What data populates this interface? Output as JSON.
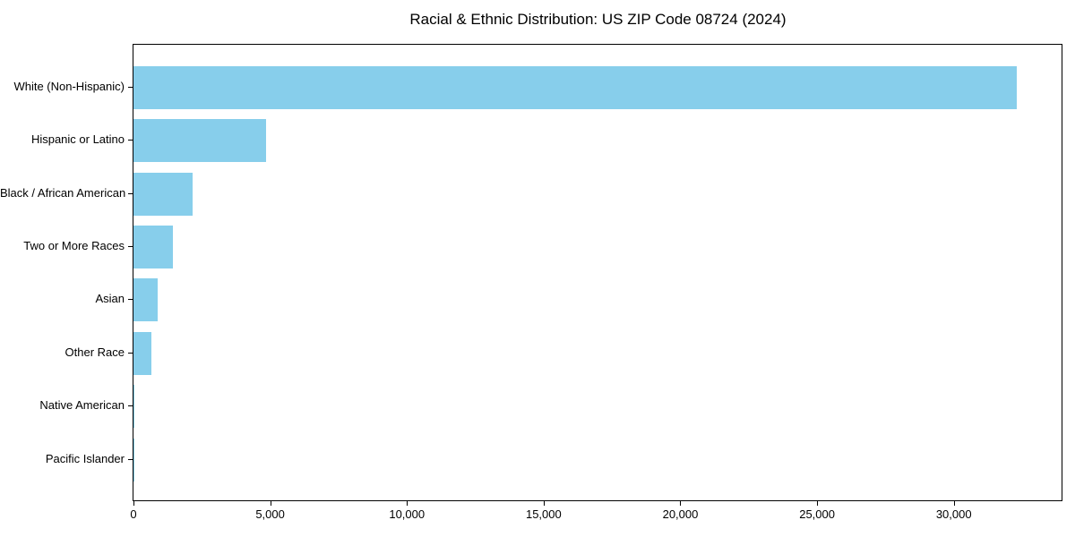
{
  "chart_data": {
    "type": "bar",
    "orientation": "horizontal",
    "title": "Racial & Ethnic Distribution: US ZIP Code 08724 (2024)",
    "categories": [
      "White (Non-Hispanic)",
      "Hispanic or Latino",
      "Black / African American",
      "Two or More Races",
      "Asian",
      "Other Race",
      "Native American",
      "Pacific Islander"
    ],
    "values": [
      32300,
      4850,
      2170,
      1450,
      900,
      670,
      30,
      10
    ],
    "xlabel": "",
    "ylabel": "",
    "xlim": [
      0,
      33940
    ],
    "xticks": [
      {
        "value": 0,
        "label": "0"
      },
      {
        "value": 5000,
        "label": "5,000"
      },
      {
        "value": 10000,
        "label": "10,000"
      },
      {
        "value": 15000,
        "label": "15,000"
      },
      {
        "value": 20000,
        "label": "20,000"
      },
      {
        "value": 25000,
        "label": "25,000"
      },
      {
        "value": 30000,
        "label": "30,000"
      }
    ],
    "grid": false,
    "legend": false,
    "sort": "descending"
  },
  "colors": {
    "bar": "#87CEEB",
    "axis": "#000000",
    "text": "#000000",
    "background": "#ffffff"
  }
}
